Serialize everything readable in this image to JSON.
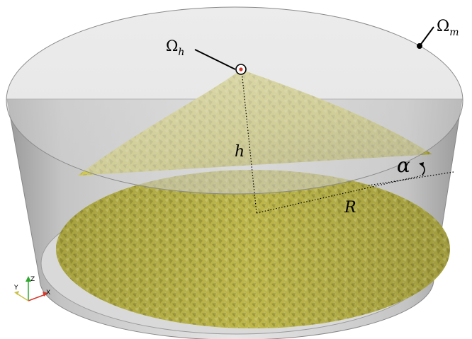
{
  "labels": {
    "omega_m": {
      "base": "Ω",
      "sub": "m"
    },
    "omega_h": {
      "base": "Ω",
      "sub": "h"
    },
    "height": "h",
    "radius": "R",
    "angle": "α"
  },
  "axes_triad": {
    "z": "Z",
    "y": "Y",
    "x": "X"
  },
  "colors": {
    "cone": "#c9c24a",
    "cone_light": "#e4dd6a",
    "cone_dark": "#8e8a35",
    "container": "#d0d0d0",
    "container_wall": "#a9a9a9",
    "marker": "#d33a2c",
    "z_axis": "#2ea82e",
    "x_axis": "#d33a2c",
    "y_axis": "#c9c24a"
  }
}
